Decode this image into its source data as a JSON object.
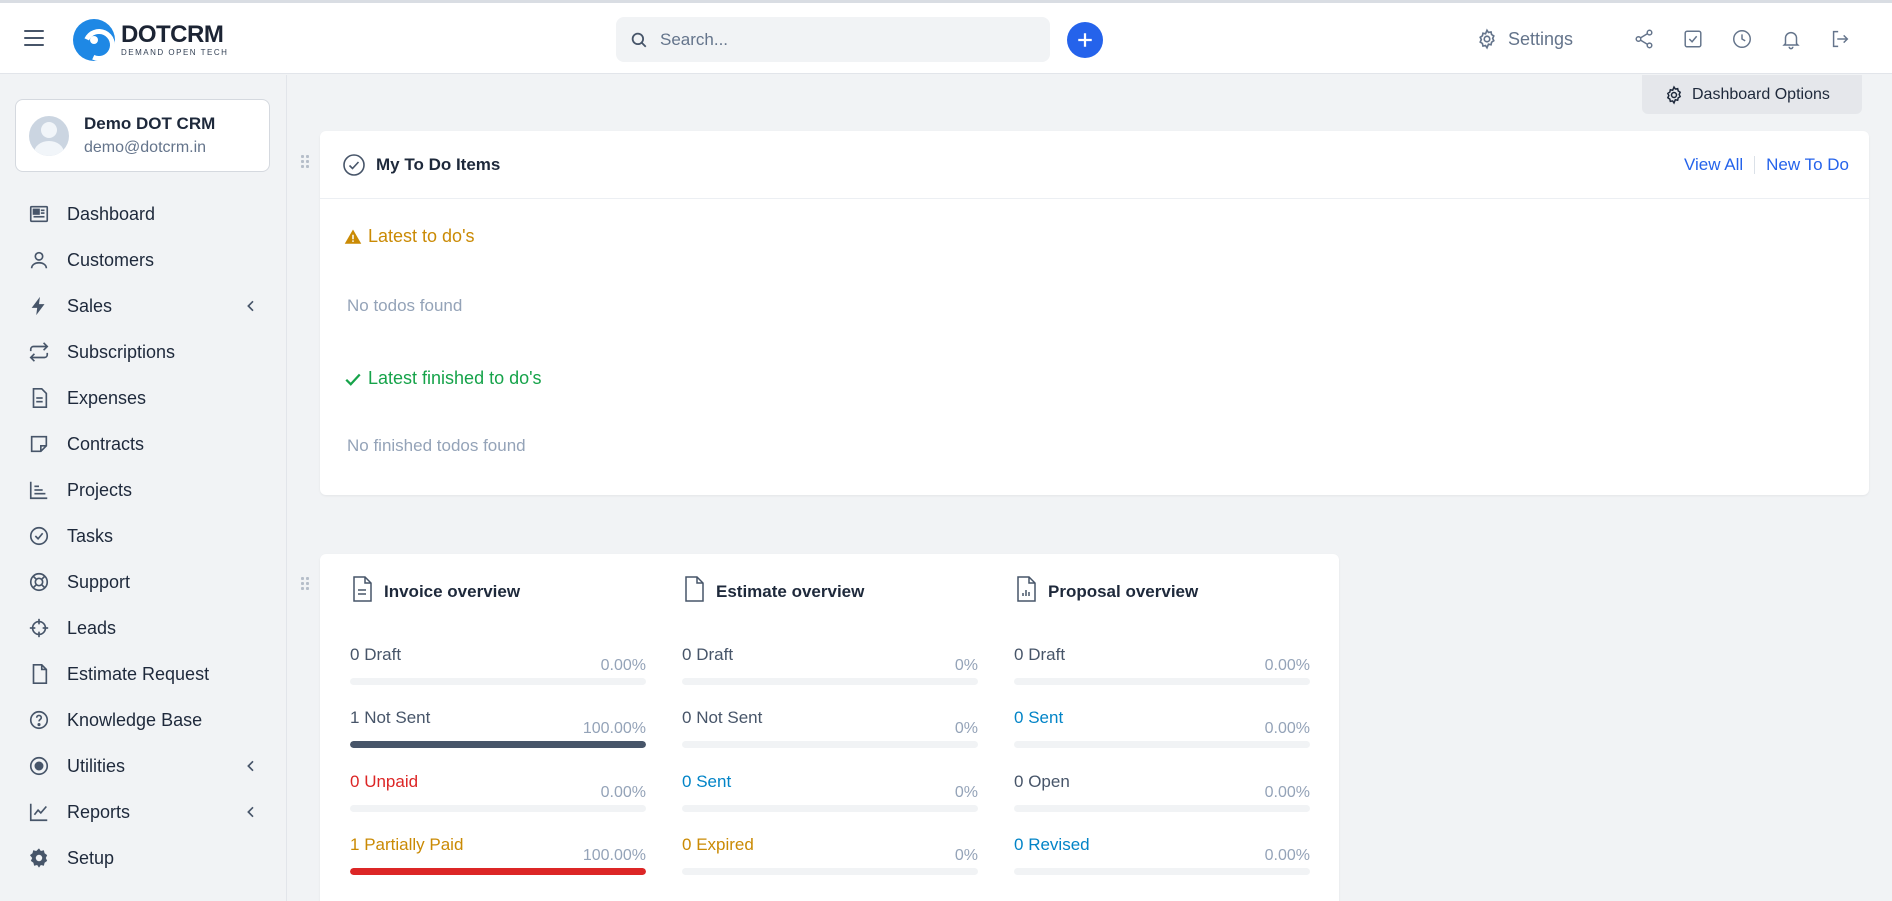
{
  "brand": {
    "name": "DOTCRM",
    "tagline": "DEMAND OPEN TECH",
    "accent": "#1e88e5"
  },
  "header": {
    "search_placeholder": "Search...",
    "settings_label": "Settings",
    "icons": [
      "share-icon",
      "todo-check-icon",
      "clock-icon",
      "bell-icon",
      "logout-icon"
    ]
  },
  "profile": {
    "name": "Demo DOT CRM",
    "email": "demo@dotcrm.in"
  },
  "sidebar": {
    "items": [
      {
        "label": "Dashboard",
        "icon": "dashboard-icon",
        "has_submenu": false
      },
      {
        "label": "Customers",
        "icon": "user-icon",
        "has_submenu": false
      },
      {
        "label": "Sales",
        "icon": "bolt-icon",
        "has_submenu": true
      },
      {
        "label": "Subscriptions",
        "icon": "repeat-icon",
        "has_submenu": false
      },
      {
        "label": "Expenses",
        "icon": "document-icon",
        "has_submenu": false
      },
      {
        "label": "Contracts",
        "icon": "note-icon",
        "has_submenu": false
      },
      {
        "label": "Projects",
        "icon": "bar-chart-icon",
        "has_submenu": false
      },
      {
        "label": "Tasks",
        "icon": "check-circle-icon",
        "has_submenu": false
      },
      {
        "label": "Support",
        "icon": "lifebuoy-icon",
        "has_submenu": false
      },
      {
        "label": "Leads",
        "icon": "crosshair-icon",
        "has_submenu": false
      },
      {
        "label": "Estimate Request",
        "icon": "file-icon",
        "has_submenu": false
      },
      {
        "label": "Knowledge Base",
        "icon": "question-circle-icon",
        "has_submenu": false
      },
      {
        "label": "Utilities",
        "icon": "dot-circle-icon",
        "has_submenu": true
      },
      {
        "label": "Reports",
        "icon": "line-chart-icon",
        "has_submenu": true
      },
      {
        "label": "Setup",
        "icon": "cog-icon",
        "has_submenu": false
      }
    ]
  },
  "dashboard_options_label": "Dashboard Options",
  "todo": {
    "title": "My To Do Items",
    "view_all": "View All",
    "new_todo": "New To Do",
    "latest_label": "Latest to do's",
    "latest_empty": "No todos found",
    "finished_label": "Latest finished to do's",
    "finished_empty": "No finished todos found",
    "warning_color": "#ca8a04",
    "success_color": "#16a34a"
  },
  "overview": {
    "columns": [
      {
        "title": "Invoice overview",
        "rows": [
          {
            "num": "0",
            "label": "Draft",
            "pct": "0.00%",
            "fill": 0,
            "color": "#475569",
            "bar": "#475569"
          },
          {
            "num": "1",
            "label": "Not Sent",
            "pct": "100.00%",
            "fill": 100,
            "color": "#475569",
            "bar": "#475569"
          },
          {
            "num": "0",
            "label": "Unpaid",
            "pct": "0.00%",
            "fill": 0,
            "color": "#dc2626",
            "bar": "#dc2626"
          },
          {
            "num": "1",
            "label": "Partially Paid",
            "pct": "100.00%",
            "fill": 100,
            "color": "#ca8a04",
            "bar": "#dc2626"
          }
        ]
      },
      {
        "title": "Estimate overview",
        "rows": [
          {
            "num": "0",
            "label": "Draft",
            "pct": "0%",
            "fill": 0,
            "color": "#475569",
            "bar": "#475569"
          },
          {
            "num": "0",
            "label": "Not Sent",
            "pct": "0%",
            "fill": 0,
            "color": "#475569",
            "bar": "#475569"
          },
          {
            "num": "0",
            "label": "Sent",
            "pct": "0%",
            "fill": 0,
            "color": "#0284c7",
            "bar": "#0284c7"
          },
          {
            "num": "0",
            "label": "Expired",
            "pct": "0%",
            "fill": 0,
            "color": "#ca8a04",
            "bar": "#ca8a04"
          }
        ]
      },
      {
        "title": "Proposal overview",
        "rows": [
          {
            "num": "0",
            "label": "Draft",
            "pct": "0.00%",
            "fill": 0,
            "color": "#475569",
            "bar": "#475569"
          },
          {
            "num": "0",
            "label": "Sent",
            "pct": "0.00%",
            "fill": 0,
            "color": "#0284c7",
            "bar": "#0284c7"
          },
          {
            "num": "0",
            "label": "Open",
            "pct": "0.00%",
            "fill": 0,
            "color": "#475569",
            "bar": "#475569"
          },
          {
            "num": "0",
            "label": "Revised",
            "pct": "0.00%",
            "fill": 0,
            "color": "#0284c7",
            "bar": "#0284c7"
          }
        ]
      }
    ]
  }
}
